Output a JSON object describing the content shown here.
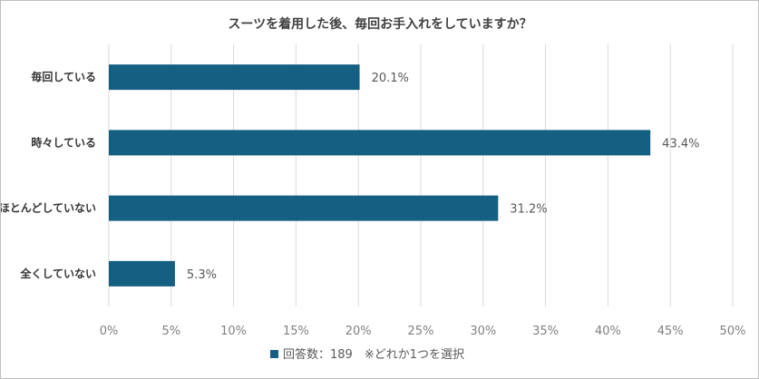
{
  "chart_data": {
    "type": "bar",
    "orientation": "horizontal",
    "title": "スーツを着用した後、毎回お手入れをしていますか？",
    "categories": [
      "毎回している",
      "時々している",
      "ほとんどしていない",
      "全くしていない"
    ],
    "series": [
      {
        "name": "回答数：189　※どれか1つを選択",
        "values": [
          20.1,
          43.4,
          31.2,
          5.3
        ],
        "color": "#155f82"
      }
    ],
    "data_labels": [
      "20.1%",
      "43.4%",
      "31.2%",
      "5.3%"
    ],
    "xlim": [
      0,
      50
    ],
    "x_ticks": [
      "0%",
      "5%",
      "10%",
      "15%",
      "20%",
      "25%",
      "30%",
      "35%",
      "40%",
      "45%",
      "50%"
    ],
    "grid": true,
    "legend_position": "bottom"
  }
}
